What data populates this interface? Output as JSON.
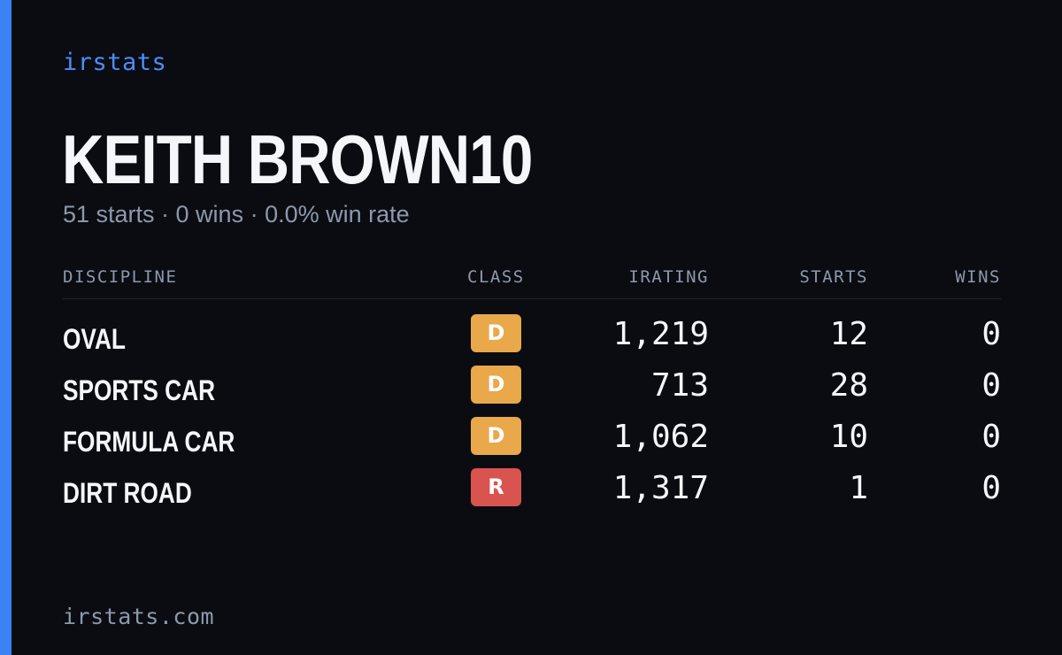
{
  "brand": "irstats",
  "driver": {
    "name": "KEITH BROWN10",
    "summary": "51 starts · 0 wins · 0.0% win rate"
  },
  "table": {
    "headers": {
      "discipline": "DISCIPLINE",
      "class": "CLASS",
      "irating": "IRATING",
      "starts": "STARTS",
      "wins": "WINS"
    },
    "rows": [
      {
        "discipline": "OVAL",
        "class": "D",
        "irating": "1,219",
        "starts": "12",
        "wins": "0"
      },
      {
        "discipline": "SPORTS CAR",
        "class": "D",
        "irating": "713",
        "starts": "28",
        "wins": "0"
      },
      {
        "discipline": "FORMULA CAR",
        "class": "D",
        "irating": "1,062",
        "starts": "10",
        "wins": "0"
      },
      {
        "discipline": "DIRT ROAD",
        "class": "R",
        "irating": "1,317",
        "starts": "1",
        "wins": "0"
      }
    ]
  },
  "footer": "irstats.com",
  "colors": {
    "background": "#0a0c12",
    "accent": "#3b82f6",
    "class_d": "#e9a84a",
    "class_r": "#d9534f",
    "muted_text": "#8e98ab",
    "primary_text": "#f4f6fa"
  }
}
